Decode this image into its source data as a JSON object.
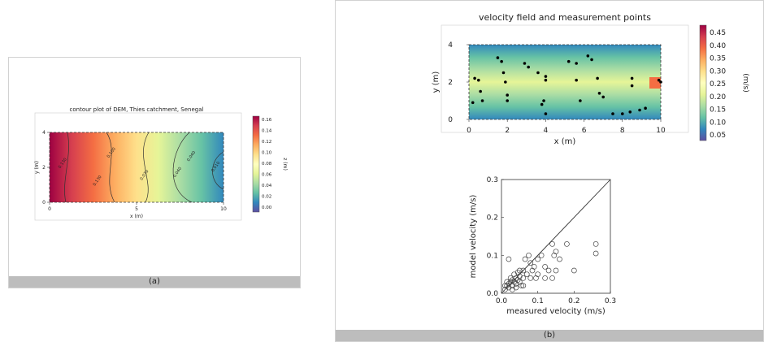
{
  "captions": {
    "a": "(a)",
    "b": "(b)"
  },
  "chart_data": [
    {
      "type": "heatmap",
      "title": "contour plot of DEM, Thies catchment, Senegal",
      "xlabel": "x (m)",
      "ylabel": "y (m)",
      "xlim": [
        0,
        10
      ],
      "ylim": [
        0,
        4
      ],
      "xticks": [
        "0",
        "5",
        "10"
      ],
      "yticks": [
        "0",
        "2",
        "4"
      ],
      "colorbar": {
        "label": "z (m)",
        "ticks": [
          "0.16",
          "0.14",
          "0.12",
          "0.10",
          "0.08",
          "0.06",
          "0.04",
          "0.02",
          "0.00"
        ],
        "colormap": [
          "#9e0142",
          "#d53e4f",
          "#f46d43",
          "#fdae61",
          "#fee08b",
          "#ffffbf",
          "#e6f598",
          "#abdda4",
          "#66c2a5",
          "#3288bd",
          "#5e4fa2"
        ]
      },
      "contour_labels": [
        "0.130",
        "0.130",
        "0.100",
        "0.070",
        "0.040",
        "0.040",
        "0.010"
      ]
    },
    {
      "type": "heatmap",
      "title": "velocity field and measurement points",
      "xlabel": "x (m)",
      "ylabel": "y (m)",
      "xlim": [
        0,
        10
      ],
      "ylim": [
        0,
        4
      ],
      "xticks": [
        "0",
        "2",
        "4",
        "6",
        "8",
        "10"
      ],
      "yticks": [
        "0",
        "2",
        "4"
      ],
      "colorbar": {
        "label": "(m/s)",
        "ticks": [
          "0.45",
          "0.40",
          "0.35",
          "0.30",
          "0.25",
          "0.20",
          "0.15",
          "0.10",
          "0.05"
        ],
        "colormap": [
          "#9e0142",
          "#d53e4f",
          "#f46d43",
          "#fdae61",
          "#fee08b",
          "#ffffbf",
          "#e6f598",
          "#abdda4",
          "#66c2a5",
          "#3288bd",
          "#5e4fa2"
        ]
      },
      "measurement_points": [
        [
          0.3,
          2.2
        ],
        [
          0.5,
          2.1
        ],
        [
          0.6,
          1.5
        ],
        [
          0.7,
          1.0
        ],
        [
          0.2,
          0.9
        ],
        [
          1.5,
          3.3
        ],
        [
          1.7,
          3.1
        ],
        [
          1.8,
          2.5
        ],
        [
          1.9,
          2.0
        ],
        [
          2.0,
          1.0
        ],
        [
          2.0,
          1.3
        ],
        [
          2.9,
          3.0
        ],
        [
          3.1,
          2.8
        ],
        [
          3.6,
          2.5
        ],
        [
          3.9,
          1.0
        ],
        [
          3.8,
          0.8
        ],
        [
          4.0,
          0.3
        ],
        [
          4.0,
          2.1
        ],
        [
          4.0,
          2.3
        ],
        [
          5.2,
          3.1
        ],
        [
          5.6,
          3.0
        ],
        [
          5.6,
          2.1
        ],
        [
          5.8,
          1.0
        ],
        [
          6.2,
          3.4
        ],
        [
          6.4,
          3.2
        ],
        [
          6.7,
          2.2
        ],
        [
          6.8,
          1.4
        ],
        [
          7.0,
          1.2
        ],
        [
          8.5,
          2.2
        ],
        [
          8.5,
          1.8
        ],
        [
          7.5,
          0.3
        ],
        [
          8.0,
          0.3
        ],
        [
          8.4,
          0.4
        ],
        [
          8.9,
          0.5
        ],
        [
          9.2,
          0.6
        ],
        [
          9.9,
          2.1
        ],
        [
          10.0,
          2.0
        ]
      ]
    },
    {
      "type": "scatter",
      "title": "",
      "xlabel": "measured velocity (m/s)",
      "ylabel": "model velocity (m/s)",
      "xlim": [
        0,
        0.3
      ],
      "ylim": [
        0,
        0.3
      ],
      "xticks": [
        "0.0",
        "0.1",
        "0.2",
        "0.3"
      ],
      "yticks": [
        "0.0",
        "0.1",
        "0.2",
        "0.3"
      ],
      "reference_line": [
        [
          0,
          0
        ],
        [
          0.3,
          0.3
        ]
      ],
      "points": [
        [
          0.01,
          0.01
        ],
        [
          0.015,
          0.02
        ],
        [
          0.02,
          0.015
        ],
        [
          0.02,
          0.025
        ],
        [
          0.025,
          0.03
        ],
        [
          0.03,
          0.02
        ],
        [
          0.03,
          0.035
        ],
        [
          0.035,
          0.03
        ],
        [
          0.04,
          0.025
        ],
        [
          0.04,
          0.04
        ],
        [
          0.045,
          0.035
        ],
        [
          0.05,
          0.03
        ],
        [
          0.05,
          0.045
        ],
        [
          0.055,
          0.02
        ],
        [
          0.02,
          0.09
        ],
        [
          0.06,
          0.04
        ],
        [
          0.06,
          0.06
        ],
        [
          0.065,
          0.09
        ],
        [
          0.07,
          0.05
        ],
        [
          0.075,
          0.1
        ],
        [
          0.08,
          0.08
        ],
        [
          0.08,
          0.04
        ],
        [
          0.085,
          0.06
        ],
        [
          0.09,
          0.07
        ],
        [
          0.095,
          0.04
        ],
        [
          0.1,
          0.09
        ],
        [
          0.1,
          0.05
        ],
        [
          0.11,
          0.1
        ],
        [
          0.12,
          0.07
        ],
        [
          0.12,
          0.04
        ],
        [
          0.13,
          0.06
        ],
        [
          0.14,
          0.13
        ],
        [
          0.145,
          0.1
        ],
        [
          0.15,
          0.11
        ],
        [
          0.15,
          0.06
        ],
        [
          0.14,
          0.04
        ],
        [
          0.16,
          0.09
        ],
        [
          0.18,
          0.13
        ],
        [
          0.2,
          0.06
        ],
        [
          0.26,
          0.13
        ],
        [
          0.26,
          0.105
        ],
        [
          0.015,
          0.03
        ],
        [
          0.025,
          0.04
        ],
        [
          0.035,
          0.05
        ],
        [
          0.045,
          0.055
        ],
        [
          0.05,
          0.06
        ],
        [
          0.03,
          0.01
        ],
        [
          0.04,
          0.015
        ],
        [
          0.06,
          0.02
        ],
        [
          0.01,
          0.02
        ]
      ]
    }
  ]
}
